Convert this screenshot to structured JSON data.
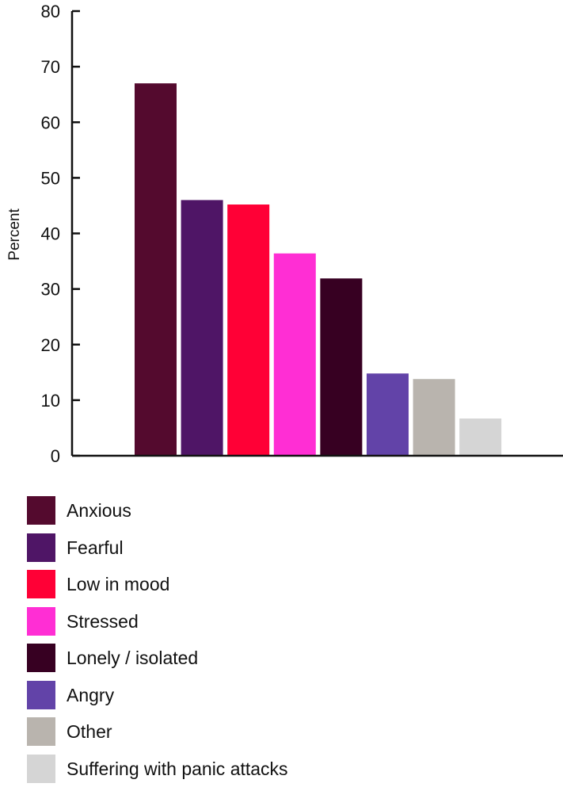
{
  "chart_data": {
    "type": "bar",
    "ylabel": "Percent",
    "xlabel": "",
    "ylim": [
      0,
      80
    ],
    "yticks": [
      0,
      10,
      20,
      30,
      40,
      50,
      60,
      70,
      80
    ],
    "grid": false,
    "legend_position": "bottom",
    "series": [
      {
        "name": "Anxious",
        "value": 67,
        "color": "#540a2e"
      },
      {
        "name": "Fearful",
        "value": 46,
        "color": "#4f1566"
      },
      {
        "name": "Low in mood",
        "value": 45.2,
        "color": "#ff0036"
      },
      {
        "name": "Stressed",
        "value": 36.4,
        "color": "#ff2ed4"
      },
      {
        "name": "Lonely / isolated",
        "value": 31.9,
        "color": "#370022"
      },
      {
        "name": "Angry",
        "value": 14.8,
        "color": "#6243a8"
      },
      {
        "name": "Other",
        "value": 13.8,
        "color": "#b9b4ae"
      },
      {
        "name": "Suffering with panic attacks",
        "value": 6.7,
        "color": "#d5d5d5"
      }
    ]
  }
}
